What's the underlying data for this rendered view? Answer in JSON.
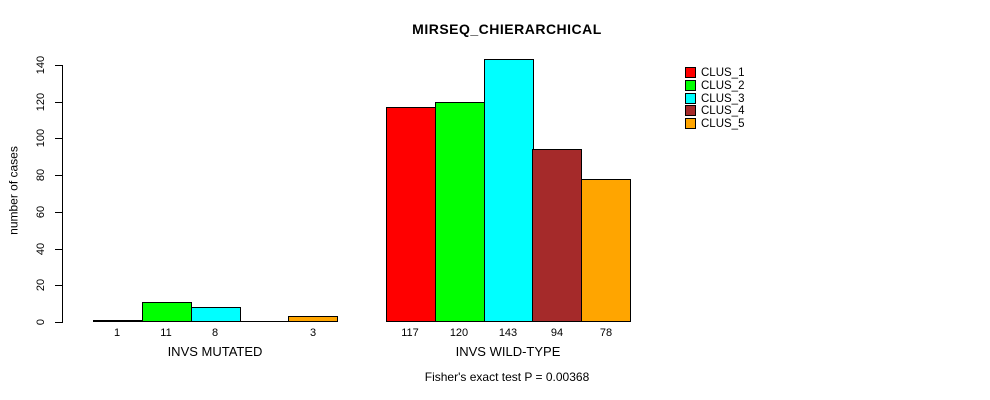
{
  "chart_data": {
    "type": "bar",
    "title": "MIRSEQ_CHIERARCHICAL",
    "ylabel": "number of cases",
    "xlabel": "",
    "ylim": [
      0,
      140
    ],
    "yticks": [
      0,
      20,
      40,
      60,
      80,
      100,
      120,
      140
    ],
    "grid": false,
    "legend_position": "top-right",
    "groups": [
      {
        "label": "INVS MUTATED",
        "values": [
          1,
          11,
          8,
          0,
          3
        ],
        "bar_labels": [
          "1",
          "11",
          "8",
          "",
          "3"
        ]
      },
      {
        "label": "INVS WILD-TYPE",
        "values": [
          117,
          120,
          143,
          94,
          78
        ],
        "bar_labels": [
          "117",
          "120",
          "143",
          "94",
          "78"
        ]
      }
    ],
    "series": [
      {
        "name": "CLUS_1",
        "color": "#FF0000"
      },
      {
        "name": "CLUS_2",
        "color": "#00FF00"
      },
      {
        "name": "CLUS_3",
        "color": "#00FFFF"
      },
      {
        "name": "CLUS_4",
        "color": "#A52A2A"
      },
      {
        "name": "CLUS_5",
        "color": "#FFA500"
      }
    ],
    "subtitle": "Fisher's exact test P = 0.00368"
  }
}
